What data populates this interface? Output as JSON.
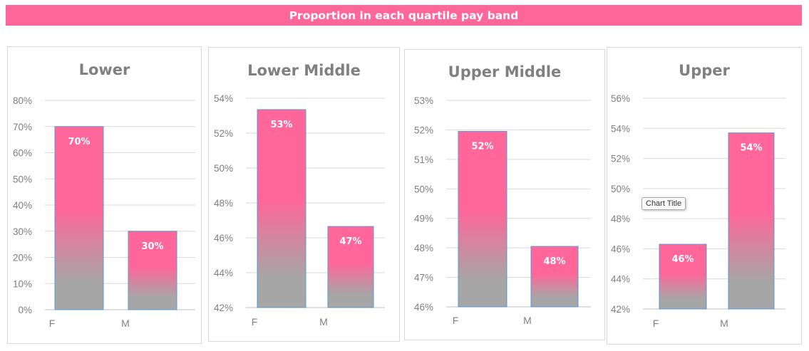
{
  "header": {
    "title": "Proportion in each quartile pay band"
  },
  "tooltip": {
    "text": "Chart Title"
  },
  "colors": {
    "bar_top": "#ff6699",
    "bar_bottom": "#a6a6a6",
    "banner": "#ff6699"
  },
  "chart_data": [
    {
      "type": "bar",
      "title": "Lower",
      "categories": [
        "F",
        "M"
      ],
      "values": [
        70,
        30
      ],
      "data_labels": [
        "70%",
        "30%"
      ],
      "yticks": [
        "0%",
        "10%",
        "20%",
        "30%",
        "40%",
        "50%",
        "60%",
        "70%",
        "80%"
      ],
      "ylim": [
        0,
        80
      ],
      "grid": true
    },
    {
      "type": "bar",
      "title": "Lower Middle",
      "categories": [
        "F",
        "M"
      ],
      "values": [
        53.35,
        46.65
      ],
      "data_labels": [
        "53%",
        "47%"
      ],
      "yticks": [
        "42%",
        "44%",
        "46%",
        "48%",
        "50%",
        "52%",
        "54%"
      ],
      "ylim": [
        42,
        54
      ],
      "grid": true
    },
    {
      "type": "bar",
      "title": "Upper Middle",
      "categories": [
        "F",
        "M"
      ],
      "values": [
        51.95,
        48.05
      ],
      "data_labels": [
        "52%",
        "48%"
      ],
      "yticks": [
        "46%",
        "47%",
        "48%",
        "49%",
        "50%",
        "51%",
        "52%",
        "53%"
      ],
      "ylim": [
        46,
        53
      ],
      "grid": true
    },
    {
      "type": "bar",
      "title": "Upper",
      "categories": [
        "F",
        "M"
      ],
      "values": [
        46.3,
        53.7
      ],
      "data_labels": [
        "46%",
        "54%"
      ],
      "yticks": [
        "42%",
        "44%",
        "46%",
        "48%",
        "50%",
        "52%",
        "54%",
        "56%"
      ],
      "ylim": [
        42,
        56
      ],
      "grid": true
    }
  ]
}
